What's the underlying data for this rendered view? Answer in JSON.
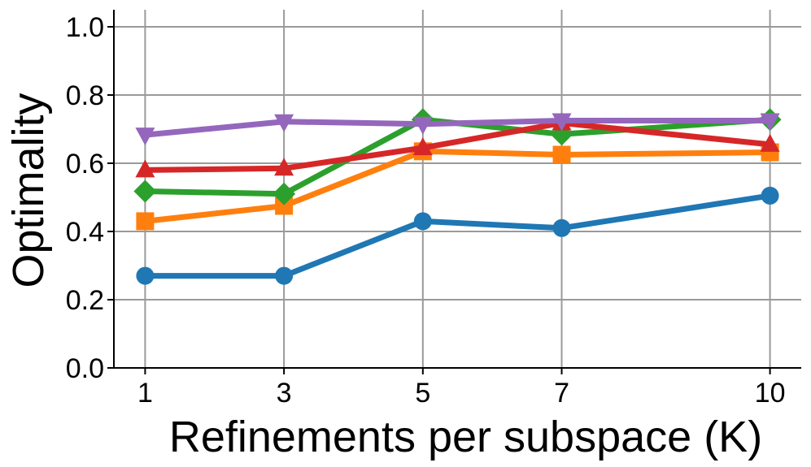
{
  "chart_data": {
    "type": "line",
    "title": "",
    "xlabel": "Refinements per subspace (K)",
    "ylabel": "Optimality",
    "x": [
      1,
      3,
      5,
      7,
      10
    ],
    "x_tick_labels": [
      "1",
      "3",
      "5",
      "7",
      "10"
    ],
    "y_ticks": [
      0.0,
      0.2,
      0.4,
      0.6,
      0.8,
      1.0
    ],
    "y_tick_labels": [
      "0.0",
      "0.2",
      "0.4",
      "0.6",
      "0.8",
      "1.0"
    ],
    "xlim": [
      0.55,
      10.45
    ],
    "ylim": [
      0.0,
      1.05
    ],
    "grid": true,
    "series": [
      {
        "color": "#1f77b4",
        "marker": "circle",
        "values": [
          0.27,
          0.27,
          0.43,
          0.41,
          0.505
        ]
      },
      {
        "color": "#ff7f0e",
        "marker": "square",
        "values": [
          0.43,
          0.475,
          0.635,
          0.625,
          0.632
        ]
      },
      {
        "color": "#2ca02c",
        "marker": "diamond",
        "values": [
          0.518,
          0.51,
          0.728,
          0.685,
          0.728
        ]
      },
      {
        "color": "#d62728",
        "marker": "triangle-up",
        "values": [
          0.58,
          0.585,
          0.645,
          0.718,
          0.655
        ]
      },
      {
        "color": "#9467bd",
        "marker": "triangle-down",
        "values": [
          0.683,
          0.722,
          0.715,
          0.725,
          0.725
        ]
      }
    ]
  }
}
